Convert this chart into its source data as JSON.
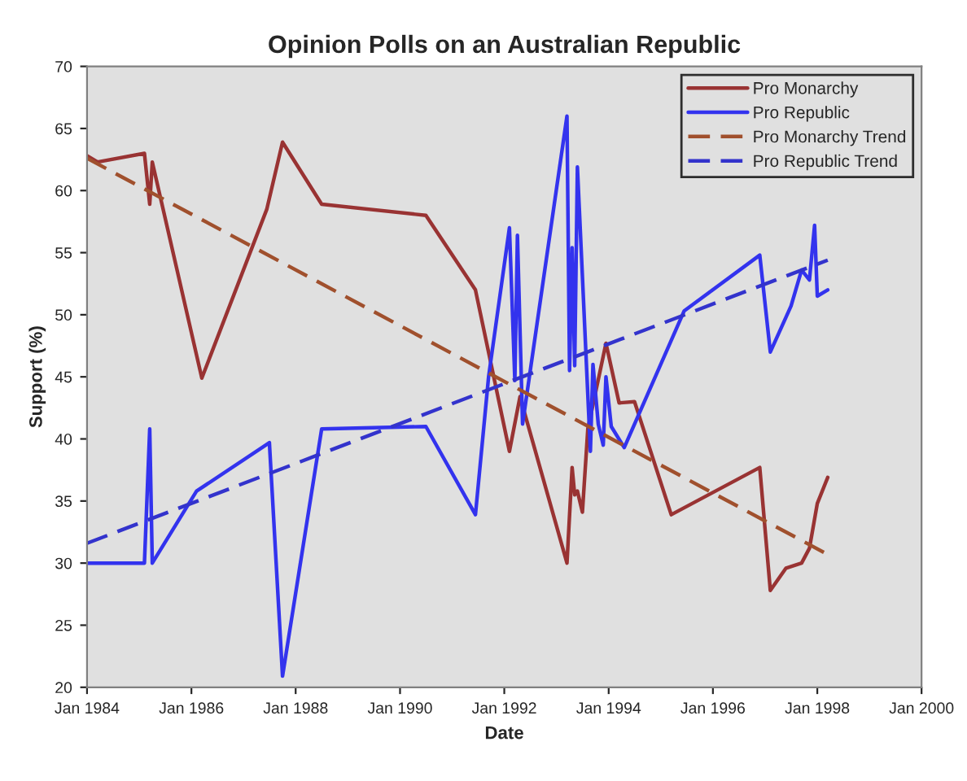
{
  "chart_data": {
    "type": "line",
    "title": "Opinion Polls on an Australian Republic",
    "xlabel": "Date",
    "ylabel": "Support (%)",
    "xlim": [
      "1984-01-01",
      "2000-01-01"
    ],
    "xticks": [
      {
        "value": "1984-01-01",
        "label": "Jan 1984"
      },
      {
        "value": "1986-01-01",
        "label": "Jan 1986"
      },
      {
        "value": "1988-01-01",
        "label": "Jan 1988"
      },
      {
        "value": "1990-01-01",
        "label": "Jan 1990"
      },
      {
        "value": "1992-01-01",
        "label": "Jan 1992"
      },
      {
        "value": "1994-01-01",
        "label": "Jan 1994"
      },
      {
        "value": "1996-01-01",
        "label": "Jan 1996"
      },
      {
        "value": "1998-01-01",
        "label": "Jan 1998"
      },
      {
        "value": "2000-01-01",
        "label": "Jan 2000"
      }
    ],
    "ylim": [
      20,
      70
    ],
    "yticks": [
      20,
      25,
      30,
      35,
      40,
      45,
      50,
      55,
      60,
      65,
      70
    ],
    "grid": false,
    "legend": "top right",
    "marker": "none",
    "series": [
      {
        "name": "Pro Monarchy",
        "color": "#993333",
        "line_style": "solid",
        "x": [
          "1984-01-01",
          "1984-03-15",
          "1985-02-06",
          "1985-03-15",
          "1985-04-02",
          "1986-03-15",
          "1987-06-13",
          "1987-10-01",
          "1988-07-01",
          "1990-07-01",
          "1991-06-13",
          "1991-10-01",
          "1992-02-06",
          "1992-04-20",
          "1993-03-15",
          "1993-04-20",
          "1993-05-08",
          "1993-05-27",
          "1993-07-01",
          "1993-08-08",
          "1993-12-13",
          "1994-03-15",
          "1994-07-01",
          "1995-03-15",
          "1996-11-24",
          "1997-02-06",
          "1997-05-27",
          "1997-09-13",
          "1997-11-07",
          "1998-01-01",
          "1998-03-15"
        ],
        "values": [
          62.8,
          62.3,
          63,
          58.9,
          62.3,
          44.9,
          58.5,
          63.9,
          58.9,
          58,
          52,
          46,
          39,
          43.4,
          30,
          37.7,
          35.5,
          35.8,
          34.1,
          40.8,
          47.7,
          42.9,
          43,
          33.9,
          37.7,
          27.8,
          29.6,
          30,
          31.2,
          34.8,
          36.9
        ]
      },
      {
        "name": "Pro Republic",
        "color": "#3333ee",
        "line_style": "solid",
        "x": [
          "1984-01-01",
          "1985-02-06",
          "1985-03-15",
          "1985-04-02",
          "1986-02-06",
          "1987-07-01",
          "1987-10-01",
          "1988-07-01",
          "1990-07-01",
          "1991-06-13",
          "1991-09-13",
          "1992-02-06",
          "1992-03-15",
          "1992-04-02",
          "1992-05-08",
          "1993-03-15",
          "1993-04-02",
          "1993-04-20",
          "1993-05-08",
          "1993-05-27",
          "1993-08-26",
          "1993-09-13",
          "1993-10-20",
          "1993-11-24",
          "1993-12-13",
          "1994-01-19",
          "1994-04-20",
          "1995-06-13",
          "1996-11-24",
          "1997-02-06",
          "1997-07-01",
          "1997-09-13",
          "1997-11-07",
          "1997-12-13",
          "1998-01-01",
          "1998-03-15"
        ],
        "values": [
          30,
          30,
          40.8,
          30,
          35.8,
          39.7,
          20.9,
          40.8,
          41,
          33.9,
          45,
          57,
          44.7,
          56.4,
          41.2,
          66,
          45.5,
          55.4,
          45.9,
          61.9,
          39,
          46,
          41.2,
          39.5,
          45,
          41,
          39.3,
          50.3,
          54.8,
          47,
          50.7,
          53.6,
          52.8,
          57.2,
          51.5,
          52
        ]
      },
      {
        "name": "Pro Monarchy Trend",
        "color": "#a0502d",
        "line_style": "dashed",
        "x": [
          "1984-01-01",
          "1998-03-15"
        ],
        "values": [
          62.6,
          30.7
        ]
      },
      {
        "name": "Pro Republic Trend",
        "color": "#3333cc",
        "line_style": "dashed",
        "x": [
          "1984-01-01",
          "1998-03-15"
        ],
        "values": [
          31.6,
          54.4
        ]
      }
    ]
  }
}
